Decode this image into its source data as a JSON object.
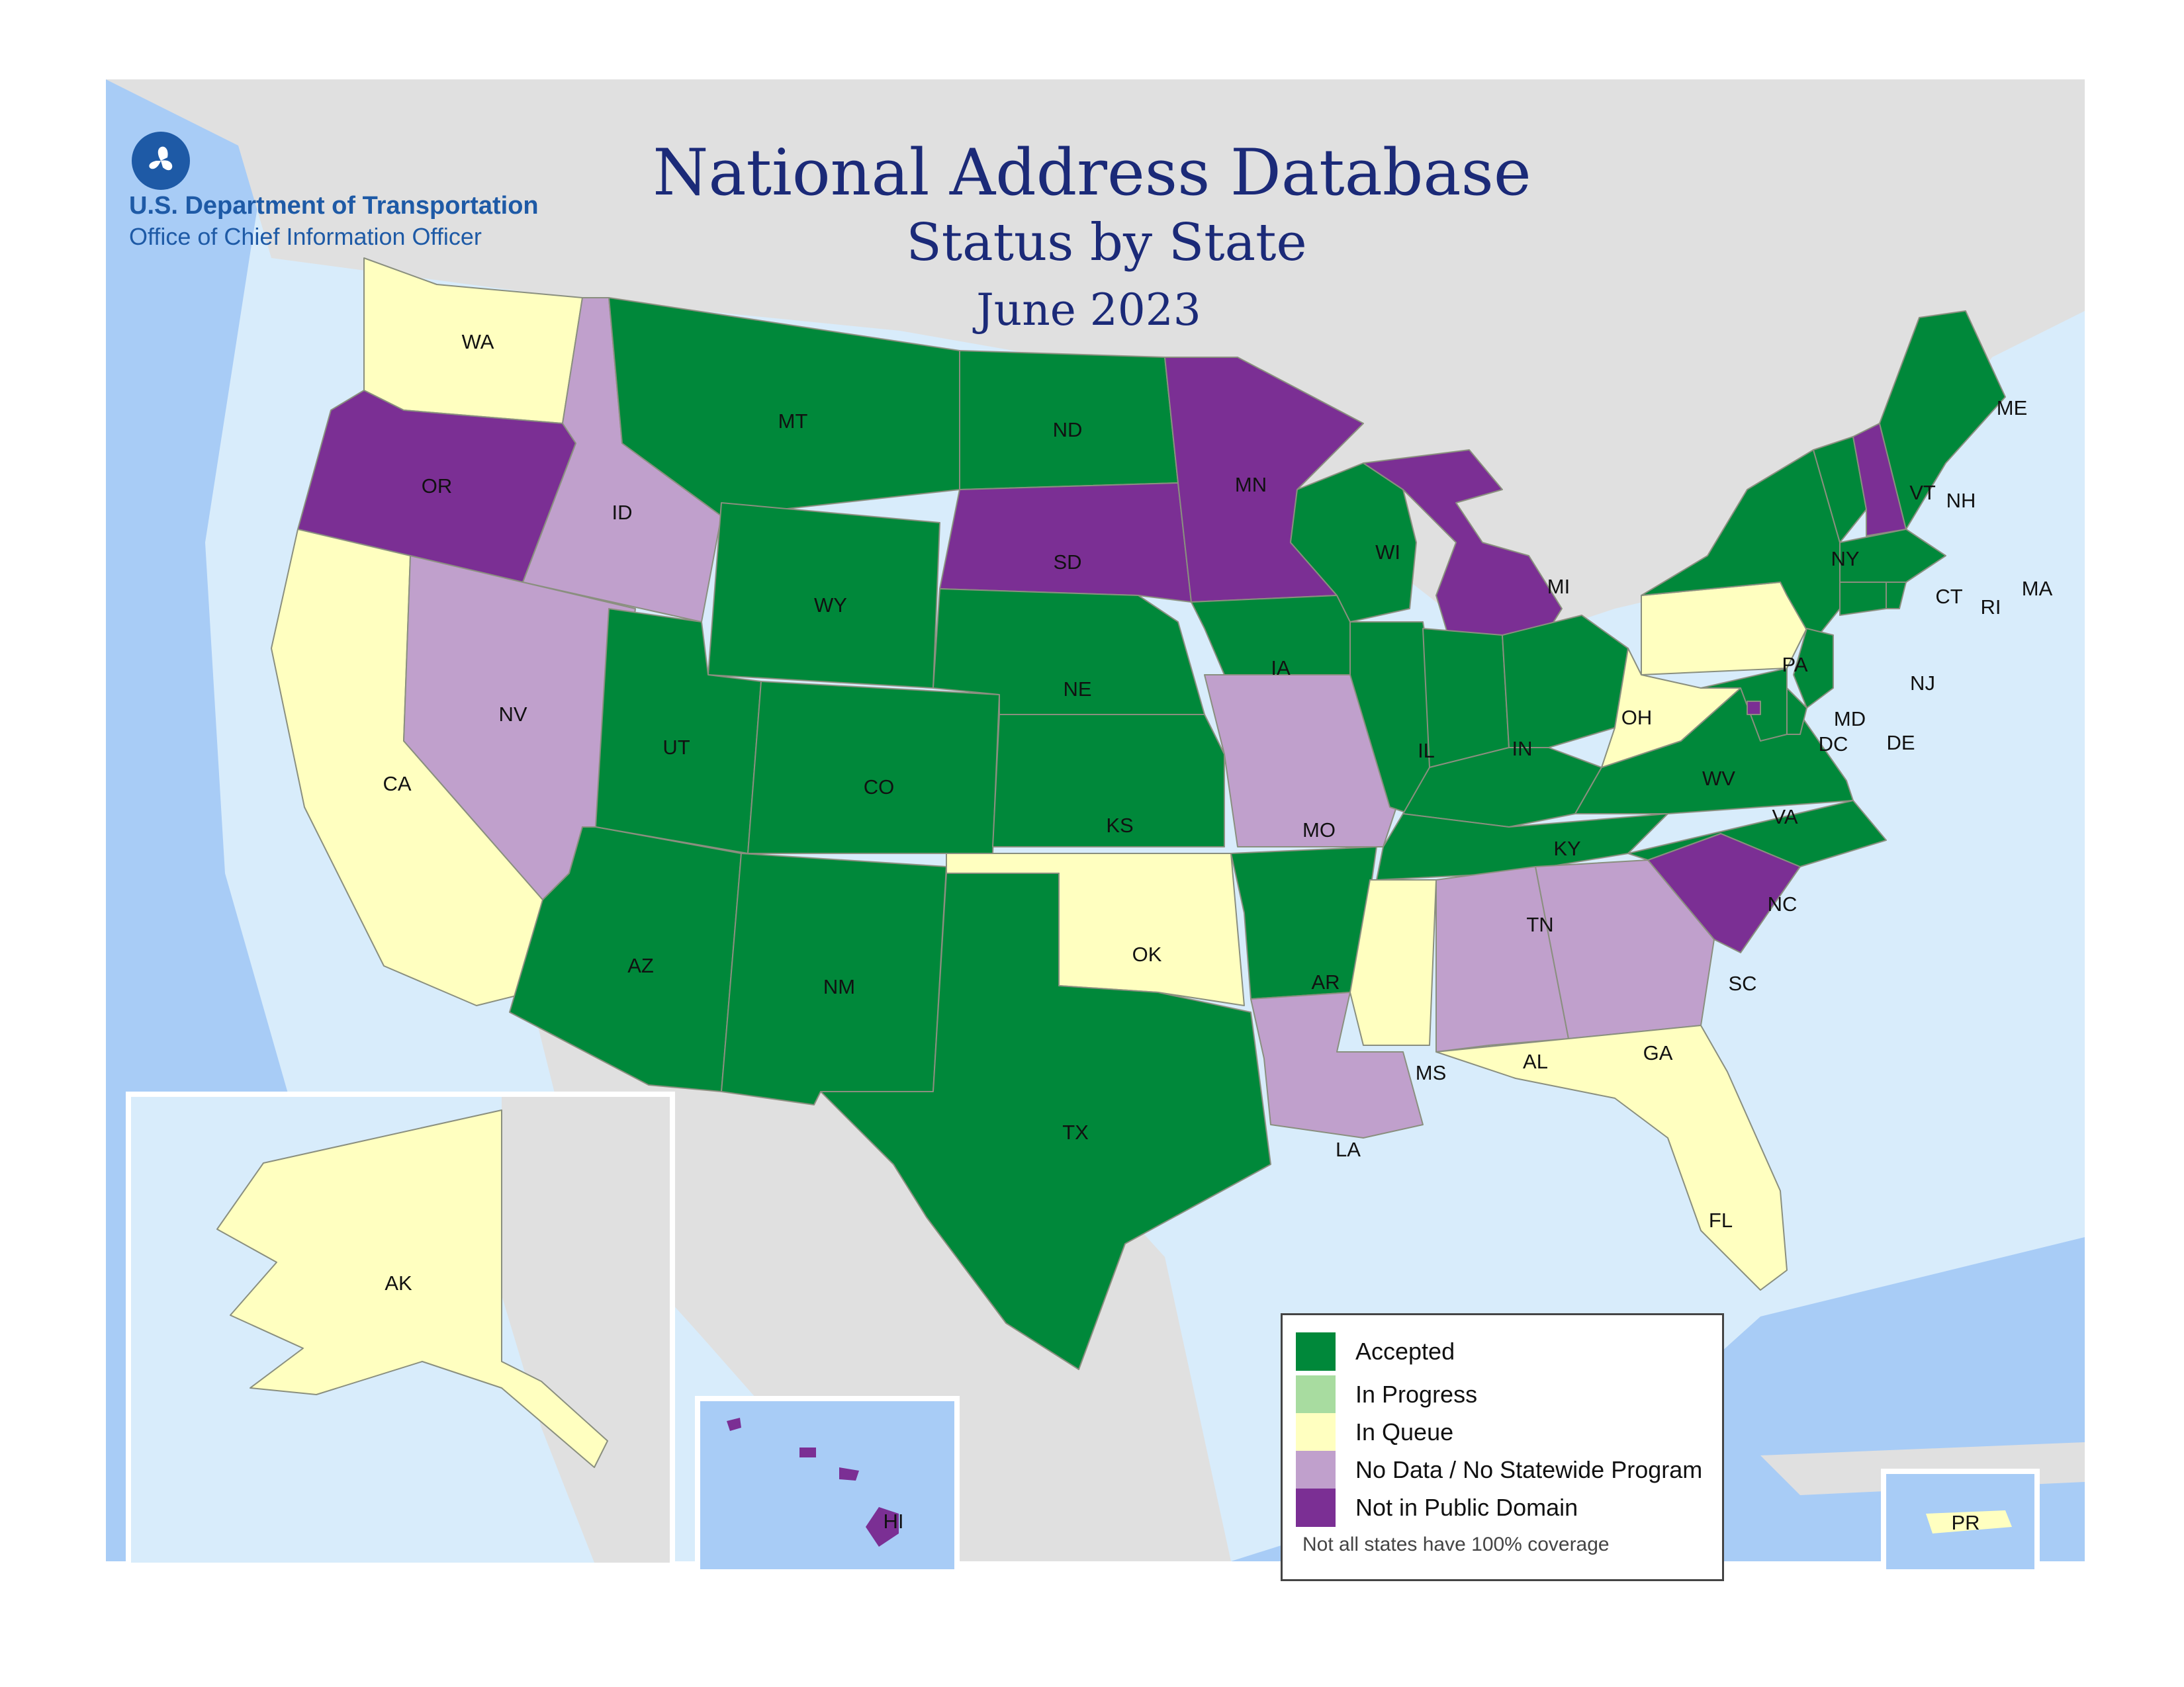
{
  "header": {
    "title": "National Address Database",
    "subtitle": "Status by State",
    "date": "June 2023"
  },
  "agency": {
    "name": "U.S. Department of Transportation",
    "office": "Office of Chief Information Officer",
    "logo_icon": "dot-triskelion-logo-icon"
  },
  "legend": {
    "items": [
      {
        "key": "accepted",
        "label": "Accepted",
        "color": "#00883a"
      },
      {
        "key": "in_progress",
        "label": "In Progress",
        "color": "#a8dca0"
      },
      {
        "key": "in_queue",
        "label": "In Queue",
        "color": "#ffffc0"
      },
      {
        "key": "no_data",
        "label": "No Data / No Statewide Program",
        "color": "#c0a0cc"
      },
      {
        "key": "not_public",
        "label": "Not in Public Domain",
        "color": "#7b2f94"
      }
    ],
    "note": "Not all states have 100% coverage"
  },
  "colors": {
    "ocean": "#a8ccf6",
    "shelf": "#d8ecfb",
    "land_other": "#e0e0e0"
  },
  "states": [
    {
      "code": "WA",
      "status": "in_queue"
    },
    {
      "code": "OR",
      "status": "not_public"
    },
    {
      "code": "CA",
      "status": "in_queue"
    },
    {
      "code": "ID",
      "status": "no_data"
    },
    {
      "code": "NV",
      "status": "no_data"
    },
    {
      "code": "MT",
      "status": "accepted"
    },
    {
      "code": "WY",
      "status": "accepted"
    },
    {
      "code": "UT",
      "status": "accepted"
    },
    {
      "code": "AZ",
      "status": "accepted"
    },
    {
      "code": "CO",
      "status": "accepted"
    },
    {
      "code": "NM",
      "status": "accepted"
    },
    {
      "code": "ND",
      "status": "accepted"
    },
    {
      "code": "SD",
      "status": "not_public"
    },
    {
      "code": "NE",
      "status": "accepted"
    },
    {
      "code": "KS",
      "status": "accepted"
    },
    {
      "code": "OK",
      "status": "in_queue"
    },
    {
      "code": "TX",
      "status": "accepted"
    },
    {
      "code": "MN",
      "status": "not_public"
    },
    {
      "code": "IA",
      "status": "accepted"
    },
    {
      "code": "MO",
      "status": "no_data"
    },
    {
      "code": "AR",
      "status": "accepted"
    },
    {
      "code": "LA",
      "status": "no_data"
    },
    {
      "code": "WI",
      "status": "accepted"
    },
    {
      "code": "IL",
      "status": "accepted"
    },
    {
      "code": "MI",
      "status": "not_public"
    },
    {
      "code": "IN",
      "status": "accepted"
    },
    {
      "code": "OH",
      "status": "accepted"
    },
    {
      "code": "KY",
      "status": "accepted"
    },
    {
      "code": "TN",
      "status": "accepted"
    },
    {
      "code": "MS",
      "status": "in_queue"
    },
    {
      "code": "AL",
      "status": "no_data"
    },
    {
      "code": "GA",
      "status": "no_data"
    },
    {
      "code": "FL",
      "status": "in_queue"
    },
    {
      "code": "SC",
      "status": "not_public"
    },
    {
      "code": "NC",
      "status": "accepted"
    },
    {
      "code": "VA",
      "status": "accepted"
    },
    {
      "code": "WV",
      "status": "in_queue"
    },
    {
      "code": "PA",
      "status": "in_queue"
    },
    {
      "code": "NY",
      "status": "accepted"
    },
    {
      "code": "VT",
      "status": "accepted"
    },
    {
      "code": "NH",
      "status": "not_public"
    },
    {
      "code": "ME",
      "status": "accepted"
    },
    {
      "code": "MA",
      "status": "accepted"
    },
    {
      "code": "RI",
      "status": "accepted"
    },
    {
      "code": "CT",
      "status": "accepted"
    },
    {
      "code": "NJ",
      "status": "accepted"
    },
    {
      "code": "DE",
      "status": "accepted"
    },
    {
      "code": "MD",
      "status": "accepted"
    },
    {
      "code": "DC",
      "status": "not_public"
    },
    {
      "code": "AK",
      "status": "in_queue"
    },
    {
      "code": "HI",
      "status": "not_public"
    },
    {
      "code": "PR",
      "status": "in_queue"
    }
  ]
}
